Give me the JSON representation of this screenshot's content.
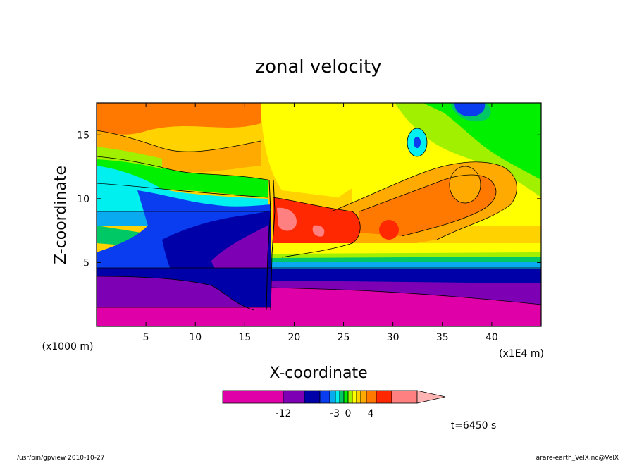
{
  "chart_data": {
    "type": "heatmap",
    "title": "zonal velocity",
    "xlabel": "X-coordinate",
    "ylabel": "Z-coordinate",
    "x_unit": "(x1E4 m)",
    "y_unit": "(x1000 m)",
    "xlim": [
      0,
      45
    ],
    "ylim": [
      0,
      17.5
    ],
    "x_ticks": [
      "5",
      "10",
      "15",
      "20",
      "25",
      "30",
      "35",
      "40"
    ],
    "y_ticks": [
      "5",
      "10",
      "15"
    ],
    "x_tick_values": [
      5,
      10,
      15,
      20,
      25,
      30,
      35,
      40
    ],
    "y_tick_values": [
      5,
      10,
      15
    ],
    "grid": false,
    "colorbar": {
      "colors": [
        "#e000a8",
        "#7e00b4",
        "#0000a8",
        "#0a3cf0",
        "#0aaaf0",
        "#00f0f0",
        "#00c864",
        "#00f000",
        "#a0f000",
        "#ffff00",
        "#ffd200",
        "#ffaa00",
        "#ff7800",
        "#ff2800",
        "#ff8080",
        "#ffb4b4"
      ],
      "labels": [
        "-12",
        "-3",
        "0",
        "4"
      ]
    },
    "regions": [
      {
        "z_range": [
          0,
          1.5
        ],
        "x_range": [
          0,
          18
        ],
        "level": "-20 to -12"
      },
      {
        "z_range": [
          1.5,
          3.5
        ],
        "x_range": [
          0,
          18
        ],
        "level": "-12 to -9"
      },
      {
        "z_range": [
          0,
          3
        ],
        "x_range": [
          18,
          45
        ],
        "level": "-20 to -12"
      },
      {
        "z_range": [
          3,
          5.5
        ],
        "x_range": [
          0,
          45
        ],
        "level": "-9 to -3"
      },
      {
        "z_range": [
          7,
          10
        ],
        "x_range": [
          18,
          32
        ],
        "level": "0 to 4"
      },
      {
        "z_range": [
          8,
          12
        ],
        "x_range": [
          30,
          42
        ],
        "level": "0 to 4"
      },
      {
        "z_range": [
          12,
          17.5
        ],
        "x_range": [
          5,
          30
        ],
        "level": "-1 to 0"
      }
    ]
  },
  "time_label": "t=6450 s",
  "footer": {
    "left": "/usr/bin/gpview  2010-10-27",
    "right": "arare-earth_VelX.nc@VelX"
  }
}
